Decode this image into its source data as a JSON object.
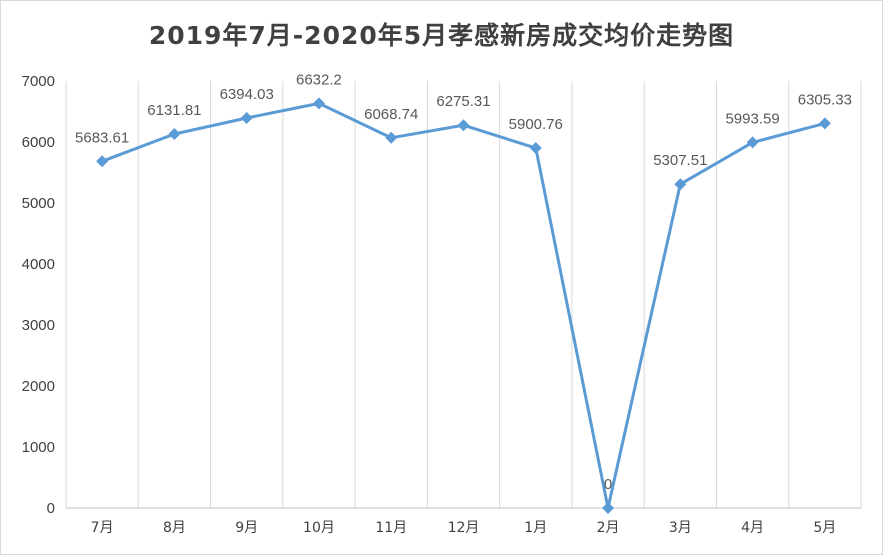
{
  "chart_data": {
    "type": "line",
    "title": "2019年7月-2020年5月孝感新房成交均价走势图",
    "xlabel": "",
    "ylabel": "",
    "categories": [
      "7月",
      "8月",
      "9月",
      "10月",
      "11月",
      "12月",
      "1月",
      "2月",
      "3月",
      "4月",
      "5月"
    ],
    "values": [
      5683.61,
      6131.81,
      6394.03,
      6632.2,
      6068.74,
      6275.31,
      5900.76,
      0,
      5307.51,
      5993.59,
      6305.33
    ],
    "value_labels": [
      "5683.61",
      "6131.81",
      "6394.03",
      "6632.2",
      "6068.74",
      "6275.31",
      "5900.76",
      "0",
      "5307.51",
      "5993.59",
      "6305.33"
    ],
    "ylim": [
      0,
      7000
    ],
    "yticks": [
      "0",
      "1000",
      "2000",
      "3000",
      "4000",
      "5000",
      "6000",
      "7000"
    ],
    "grid": "vertical",
    "legend": "none",
    "colors": {
      "series": "#5b9bd5",
      "grid": "#d9d9d9",
      "axis": "#bfbfbf",
      "text": "#404040",
      "label": "#595959"
    }
  }
}
